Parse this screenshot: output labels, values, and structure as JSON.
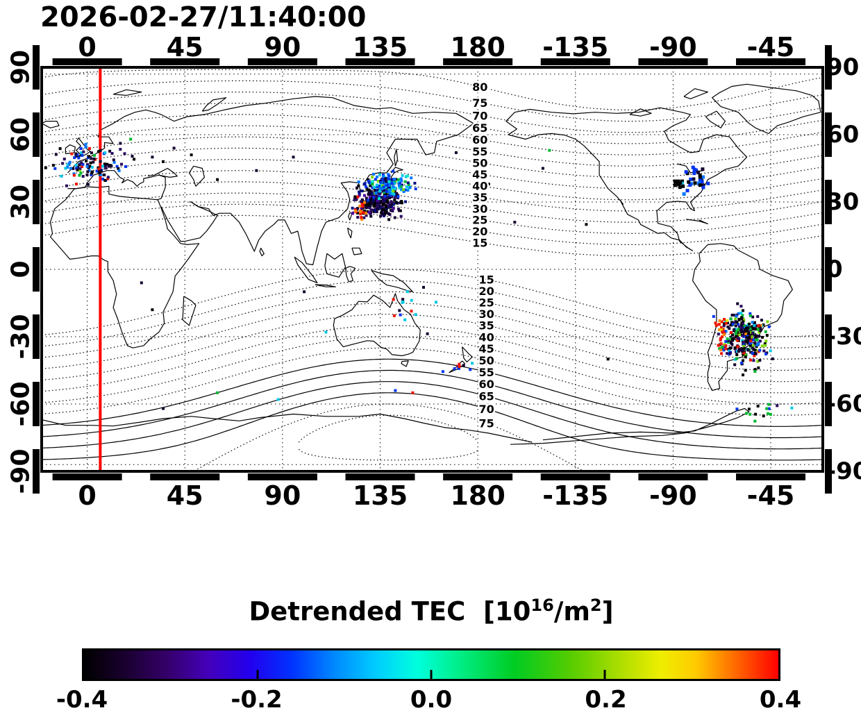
{
  "page": {
    "timestamp_title": "2026-02-27/11:40:00"
  },
  "axes": {
    "top": {
      "ticks": [
        {
          "label": "0",
          "lon": 0
        },
        {
          "label": "45",
          "lon": 45
        },
        {
          "label": "90",
          "lon": 90
        },
        {
          "label": "135",
          "lon": 135
        },
        {
          "label": "180",
          "lon": 180
        },
        {
          "label": "-135",
          "lon": 225
        },
        {
          "label": "-90",
          "lon": 270
        },
        {
          "label": "-45",
          "lon": 315
        }
      ]
    },
    "bottom": {
      "ticks": [
        {
          "label": "0",
          "lon": 0
        },
        {
          "label": "45",
          "lon": 45
        },
        {
          "label": "90",
          "lon": 90
        },
        {
          "label": "135",
          "lon": 135
        },
        {
          "label": "180",
          "lon": 180
        },
        {
          "label": "-135",
          "lon": 225
        },
        {
          "label": "-90",
          "lon": 270
        },
        {
          "label": "-45",
          "lon": 315
        }
      ]
    },
    "left": {
      "ticks": [
        {
          "label": "90",
          "lat": 90
        },
        {
          "label": "60",
          "lat": 60
        },
        {
          "label": "30",
          "lat": 30
        },
        {
          "label": "0",
          "lat": 0
        },
        {
          "label": "-30",
          "lat": -30
        },
        {
          "label": "-60",
          "lat": -60
        },
        {
          "label": "-90",
          "lat": -90
        }
      ]
    },
    "right": {
      "ticks": [
        {
          "label": "90",
          "lat": 90
        },
        {
          "label": "60",
          "lat": 60
        },
        {
          "label": "30",
          "lat": 30
        },
        {
          "label": "0",
          "lat": 0
        },
        {
          "label": "-30",
          "lat": -30
        },
        {
          "label": "-60",
          "lat": -60
        },
        {
          "label": "-90",
          "lat": -90
        }
      ]
    }
  },
  "colorbar": {
    "title_pre": "Detrended TEC  [10",
    "title_sup1": "16",
    "title_mid": "/m",
    "title_sup2": "2",
    "title_post": "]",
    "tick_labels": [
      "-0.4",
      "-0.2",
      "0.0",
      "0.2",
      "0.4"
    ],
    "min": -0.4,
    "max": 0.4,
    "gradient_stops": [
      [
        "#000000",
        0
      ],
      [
        "#1a0030",
        6
      ],
      [
        "#35006a",
        12
      ],
      [
        "#4400bb",
        18
      ],
      [
        "#2200ee",
        24
      ],
      [
        "#0033ff",
        30
      ],
      [
        "#0088ff",
        36
      ],
      [
        "#00ccff",
        42
      ],
      [
        "#00ffdd",
        48
      ],
      [
        "#00ee88",
        54
      ],
      [
        "#00cc22",
        62
      ],
      [
        "#55cc00",
        70
      ],
      [
        "#aadd00",
        77
      ],
      [
        "#eeee00",
        83
      ],
      [
        "#ffcc00",
        88
      ],
      [
        "#ff8800",
        92
      ],
      [
        "#ff4400",
        96
      ],
      [
        "#ff0000",
        100
      ]
    ]
  },
  "chart_data": {
    "type": "scatter",
    "title": "2026-02-27/11:40:00",
    "projection": "equirectangular",
    "lon_range": [
      -21,
      339
    ],
    "lat_range": [
      -90,
      90
    ],
    "x_tick_lons": [
      0,
      45,
      90,
      135,
      180,
      225,
      270,
      315
    ],
    "x_tick_labels": [
      "0",
      "45",
      "90",
      "135",
      "180",
      "-135",
      "-90",
      "-45"
    ],
    "y_tick_lats": [
      90,
      60,
      30,
      0,
      -30,
      -60,
      -90
    ],
    "y_tick_labels": [
      "90",
      "60",
      "30",
      "0",
      "-30",
      "-60",
      "-90"
    ],
    "red_meridian_lon": 6,
    "graticule": {
      "lons": [
        0,
        45,
        90,
        135,
        180,
        225,
        270,
        315
      ],
      "lats": [
        87,
        60,
        30,
        0,
        -30,
        -60,
        -87
      ]
    },
    "contours": {
      "levels": [
        15,
        20,
        25,
        30,
        35,
        40,
        45,
        50,
        55,
        60,
        65,
        70,
        75,
        80
      ],
      "north_pole": [
        81,
        -110
      ],
      "south_pole": [
        -75,
        139
      ],
      "label_lon_north": 181,
      "label_lon_south": 184,
      "label_values_north": [
        80,
        75,
        70,
        65,
        60,
        55,
        50,
        45,
        40,
        35,
        30,
        25,
        20,
        15
      ],
      "label_values_south": [
        15,
        20,
        25,
        30,
        35,
        40,
        45,
        50,
        55,
        60,
        65,
        70,
        75
      ]
    },
    "colorbar_label": "Detrended TEC [10^16/m^2]",
    "colorbar_range": [
      -0.4,
      0.4
    ],
    "clusters": [
      {
        "name": "europe",
        "center": [
          3,
          47
        ],
        "sigma": [
          7.5,
          4
        ],
        "n": 115,
        "size": 4,
        "palette": [
          [
            "#14002e",
            28
          ],
          [
            "#2a0a5e",
            18
          ],
          [
            "#000000",
            14
          ],
          [
            "#0033ee",
            12
          ],
          [
            "#0077ff",
            8
          ],
          [
            "#00c8e8",
            6
          ],
          [
            "#00b830",
            6
          ],
          [
            "#ee1500",
            6
          ],
          [
            "#7ed800",
            2
          ]
        ]
      },
      {
        "name": "east-asia-dark",
        "center": [
          133.5,
          30
        ],
        "sigma": [
          5,
          3.2
        ],
        "n": 250,
        "size": 4,
        "palette": [
          [
            "#000000",
            38
          ],
          [
            "#14002e",
            28
          ],
          [
            "#2a0a5e",
            16
          ],
          [
            "#001080",
            10
          ],
          [
            "#4b00a0",
            8
          ]
        ]
      },
      {
        "name": "east-asia-bright",
        "center": [
          138,
          37.5
        ],
        "sigma": [
          5,
          2.6
        ],
        "n": 165,
        "size": 4,
        "palette": [
          [
            "#0033ee",
            22
          ],
          [
            "#0077ff",
            16
          ],
          [
            "#00c8e8",
            16
          ],
          [
            "#001080",
            12
          ],
          [
            "#14002e",
            12
          ],
          [
            "#00b830",
            10
          ],
          [
            "#00e8c8",
            8
          ],
          [
            "#7ed800",
            4
          ]
        ]
      },
      {
        "name": "east-asia-red",
        "center": [
          126.5,
          26.5
        ],
        "sigma": [
          1.6,
          2.2
        ],
        "n": 18,
        "size": 4,
        "palette": [
          [
            "#ee1500",
            68
          ],
          [
            "#ff8800",
            22
          ],
          [
            "#00b830",
            10
          ]
        ]
      },
      {
        "name": "us-east",
        "center": [
          -80,
          40
        ],
        "sigma": [
          4,
          2.4
        ],
        "n": 30,
        "size": 5,
        "palette": [
          [
            "#0033ee",
            35
          ],
          [
            "#0077ff",
            25
          ],
          [
            "#000000",
            18
          ],
          [
            "#14002e",
            12
          ],
          [
            "#00c8e8",
            10
          ]
        ]
      },
      {
        "name": "us-black-patch",
        "center": [
          -87.5,
          38.5
        ],
        "sigma": [
          1.1,
          0.9
        ],
        "n": 12,
        "size": 5,
        "palette": [
          [
            "#000000",
            100
          ]
        ]
      },
      {
        "name": "south-america",
        "center": [
          -57,
          -30
        ],
        "sigma": [
          5,
          5.5
        ],
        "n": 300,
        "size": 4,
        "palette": [
          [
            "#000000",
            28
          ],
          [
            "#14002e",
            24
          ],
          [
            "#2a0a5e",
            12
          ],
          [
            "#0033ee",
            10
          ],
          [
            "#00b830",
            8
          ],
          [
            "#00c8e8",
            5
          ],
          [
            "#7ed800",
            4
          ],
          [
            "#ee1500",
            5
          ],
          [
            "#ff8800",
            2
          ],
          [
            "#0077ff",
            2
          ]
        ]
      },
      {
        "name": "south-america-red-edge",
        "center": [
          -67.5,
          -28
        ],
        "sigma": [
          1.3,
          4.5
        ],
        "n": 30,
        "size": 4,
        "palette": [
          [
            "#ee1500",
            72
          ],
          [
            "#ff8800",
            14
          ],
          [
            "#00b830",
            8
          ],
          [
            "#e8e800",
            6
          ]
        ]
      },
      {
        "name": "new-zealand-south",
        "center": [
          172,
          -44
        ],
        "sigma": [
          3,
          2
        ],
        "n": 10,
        "size": 4,
        "palette": [
          [
            "#14002e",
            40
          ],
          [
            "#0033ee",
            25
          ],
          [
            "#ee1500",
            20
          ],
          [
            "#00c8e8",
            15
          ]
        ]
      },
      {
        "name": "coral-sea",
        "center": [
          150,
          -16
        ],
        "sigma": [
          7,
          5
        ],
        "n": 14,
        "size": 4,
        "palette": [
          [
            "#00c8e8",
            28
          ],
          [
            "#0033ee",
            28
          ],
          [
            "#ee1500",
            22
          ],
          [
            "#14002e",
            22
          ]
        ]
      },
      {
        "name": "south-atlantic",
        "center": [
          -48,
          -63
        ],
        "sigma": [
          9,
          1.6
        ],
        "n": 15,
        "size": 4,
        "palette": [
          [
            "#2a0a5e",
            25
          ],
          [
            "#00b830",
            25
          ],
          [
            "#00c8e8",
            20
          ],
          [
            "#0033ee",
            15
          ],
          [
            "#000000",
            15
          ]
        ]
      }
    ],
    "singles": [
      [
        -147,
        53,
        "#00b830"
      ],
      [
        -163,
        21,
        "#14002e"
      ],
      [
        40,
        54,
        "#14002e"
      ],
      [
        48,
        51,
        "#000000"
      ],
      [
        30,
        50,
        "#14002e"
      ],
      [
        35,
        48,
        "#000000"
      ],
      [
        25,
        -6,
        "#14002e"
      ],
      [
        30,
        -18,
        "#000000"
      ],
      [
        78,
        44,
        "#14002e"
      ],
      [
        60,
        40,
        "#000000"
      ],
      [
        95,
        50,
        "#14002e"
      ],
      [
        -176,
        -42,
        "#ee1500"
      ],
      [
        -120,
        -40,
        "#000000"
      ],
      [
        110,
        -28,
        "#00c8e8"
      ],
      [
        100,
        -10,
        "#14002e"
      ],
      [
        142,
        -54,
        "#0033ee"
      ],
      [
        150,
        -55,
        "#ee1500"
      ],
      [
        60,
        -55,
        "#00b830"
      ],
      [
        20,
        58,
        "#00b830"
      ],
      [
        -5,
        38,
        "#ee1500"
      ],
      [
        -10,
        45,
        "#00c8e8"
      ],
      [
        155,
        -8,
        "#14002e"
      ],
      [
        170,
        52,
        "#14002e"
      ],
      [
        -175,
        38,
        "#000000"
      ],
      [
        -150,
        45,
        "#14002e"
      ],
      [
        -130,
        20,
        "#000000"
      ],
      [
        88,
        -58,
        "#00c8e8"
      ],
      [
        35,
        -62,
        "#14002e"
      ]
    ]
  }
}
